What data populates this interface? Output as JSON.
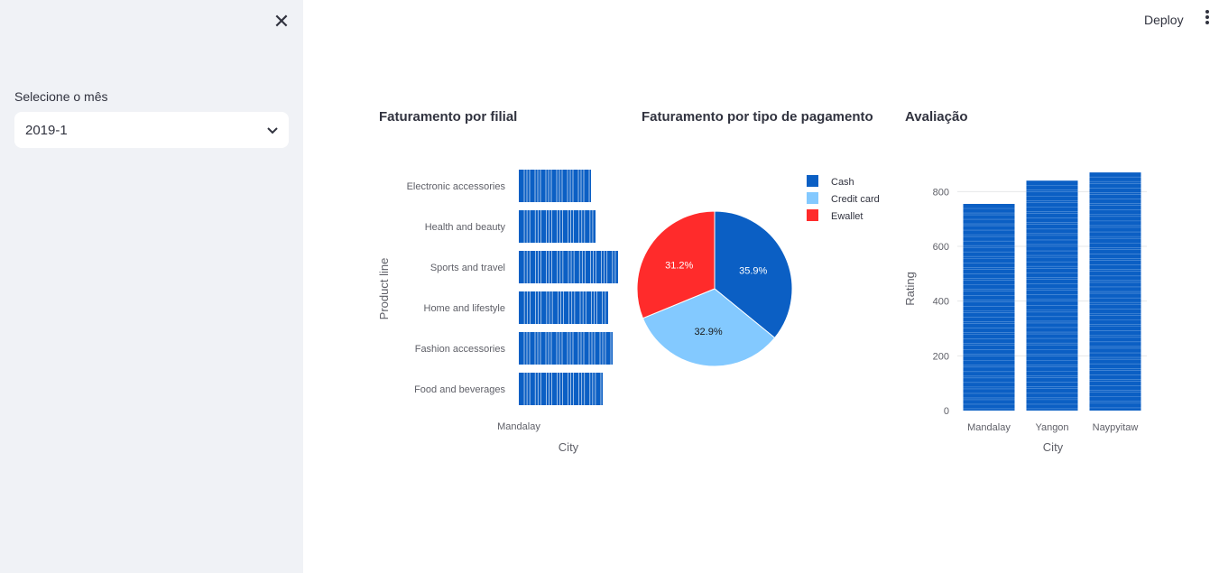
{
  "toolbar": {
    "deploy_label": "Deploy",
    "menu_icon": "more-vertical-icon"
  },
  "sidebar": {
    "close_icon": "close-icon",
    "select_label": "Selecione o mês",
    "select_value": "2019-1",
    "select_icon": "chevron-down-icon"
  },
  "colors": {
    "bar": "#0b5fc4",
    "cash": "#0b5fc4",
    "credit": "#83c9ff",
    "ewallet": "#ff2b2b"
  },
  "chart_data": [
    {
      "type": "bar",
      "orientation": "horizontal",
      "title": "Faturamento por filial",
      "xlabel": "City",
      "ylabel": "Product line",
      "x_tick": "Mandalay",
      "categories": [
        "Electronic accessories",
        "Health and beauty",
        "Sports and travel",
        "Home and lifestyle",
        "Fashion accessories",
        "Food and beverages"
      ],
      "values": [
        80,
        85,
        110,
        99,
        104,
        93
      ]
    },
    {
      "type": "pie",
      "title": "Faturamento por tipo de pagamento",
      "labels": [
        "Cash",
        "Credit card",
        "Ewallet"
      ],
      "values": [
        35.9,
        32.9,
        31.2
      ],
      "value_labels": [
        "35.9%",
        "32.9%",
        "31.2%"
      ],
      "legend": "top-right"
    },
    {
      "type": "bar",
      "title": "Avaliação",
      "xlabel": "City",
      "ylabel": "Rating",
      "categories": [
        "Mandalay",
        "Yangon",
        "Naypyitaw"
      ],
      "values": [
        755,
        840,
        870
      ],
      "ylim": [
        0,
        900
      ],
      "yticks": [
        "0",
        "200",
        "400",
        "600",
        "800"
      ],
      "grid": true
    }
  ]
}
